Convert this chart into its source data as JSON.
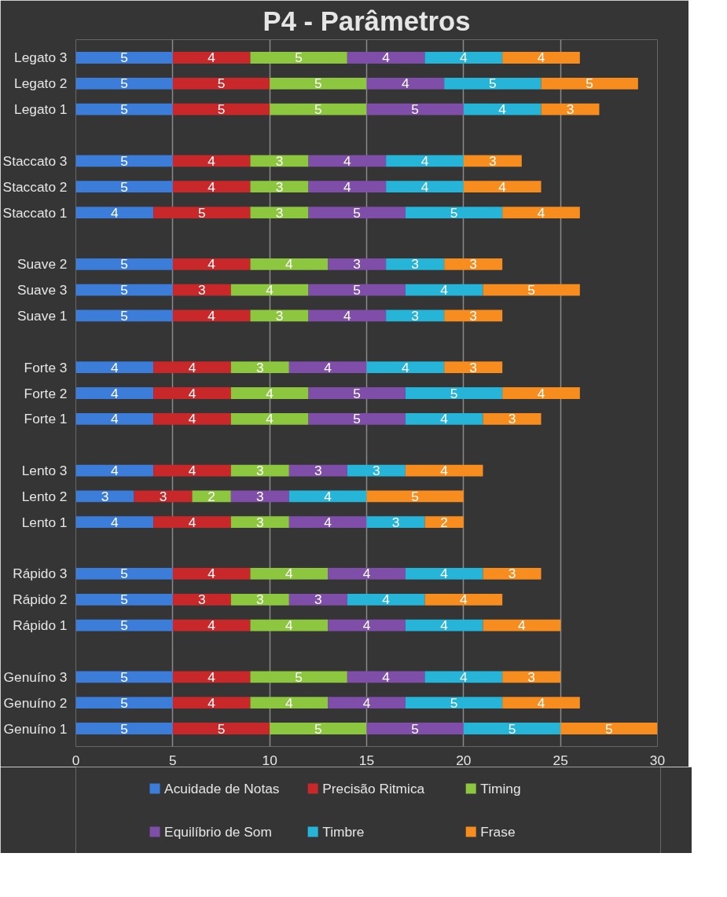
{
  "chart_data": {
    "type": "bar",
    "orientation": "horizontal",
    "stacked": true,
    "title": "P4 - Parâmetros",
    "categories": [
      "Legato 3",
      "Legato 2",
      "Legato 1",
      null,
      "Staccato 3",
      "Staccato 2",
      "Staccato 1",
      null,
      "Suave 2",
      "Suave 3",
      "Suave 1",
      null,
      "Forte 3",
      "Forte 2",
      "Forte 1",
      null,
      "Lento 3",
      "Lento 2",
      "Lento 1",
      null,
      "Rápido 3",
      "Rápido 2",
      "Rápido 1",
      null,
      "Genuíno 3",
      "Genuíno 2",
      "Genuíno 1"
    ],
    "series": [
      {
        "name": "Acuidade de Notas",
        "color": "#3b7dd8",
        "values": [
          5,
          5,
          5,
          null,
          5,
          5,
          4,
          null,
          5,
          5,
          5,
          null,
          4,
          4,
          4,
          null,
          4,
          3,
          4,
          null,
          5,
          5,
          5,
          null,
          5,
          5,
          5
        ]
      },
      {
        "name": "Precisão Ritmica",
        "color": "#c8282a",
        "values": [
          4,
          5,
          5,
          null,
          4,
          4,
          5,
          null,
          4,
          3,
          4,
          null,
          4,
          4,
          4,
          null,
          4,
          3,
          4,
          null,
          4,
          3,
          4,
          null,
          4,
          4,
          5
        ]
      },
      {
        "name": "Timing",
        "color": "#8dc63f",
        "values": [
          5,
          5,
          5,
          null,
          3,
          3,
          3,
          null,
          4,
          4,
          3,
          null,
          3,
          4,
          4,
          null,
          3,
          2,
          3,
          null,
          4,
          3,
          4,
          null,
          5,
          4,
          5
        ]
      },
      {
        "name": "Equilíbrio de Som",
        "color": "#7f4ea8",
        "values": [
          4,
          4,
          5,
          null,
          4,
          4,
          5,
          null,
          3,
          5,
          4,
          null,
          4,
          5,
          5,
          null,
          3,
          3,
          4,
          null,
          4,
          3,
          4,
          null,
          4,
          4,
          5
        ]
      },
      {
        "name": "Timbre",
        "color": "#27b4d9",
        "values": [
          4,
          5,
          4,
          null,
          4,
          4,
          5,
          null,
          3,
          4,
          3,
          null,
          4,
          5,
          4,
          null,
          3,
          4,
          3,
          null,
          4,
          4,
          4,
          null,
          4,
          5,
          5
        ]
      },
      {
        "name": "Frase",
        "color": "#f78c1f",
        "values": [
          4,
          5,
          3,
          null,
          3,
          4,
          4,
          null,
          3,
          5,
          3,
          null,
          3,
          4,
          3,
          null,
          4,
          5,
          2,
          null,
          3,
          4,
          4,
          null,
          3,
          4,
          5
        ]
      }
    ],
    "xlim": [
      0,
      30
    ],
    "xticks": [
      0,
      5,
      10,
      15,
      20,
      25,
      30
    ],
    "grid": "x",
    "data_labels": true,
    "legend": "bottom"
  }
}
